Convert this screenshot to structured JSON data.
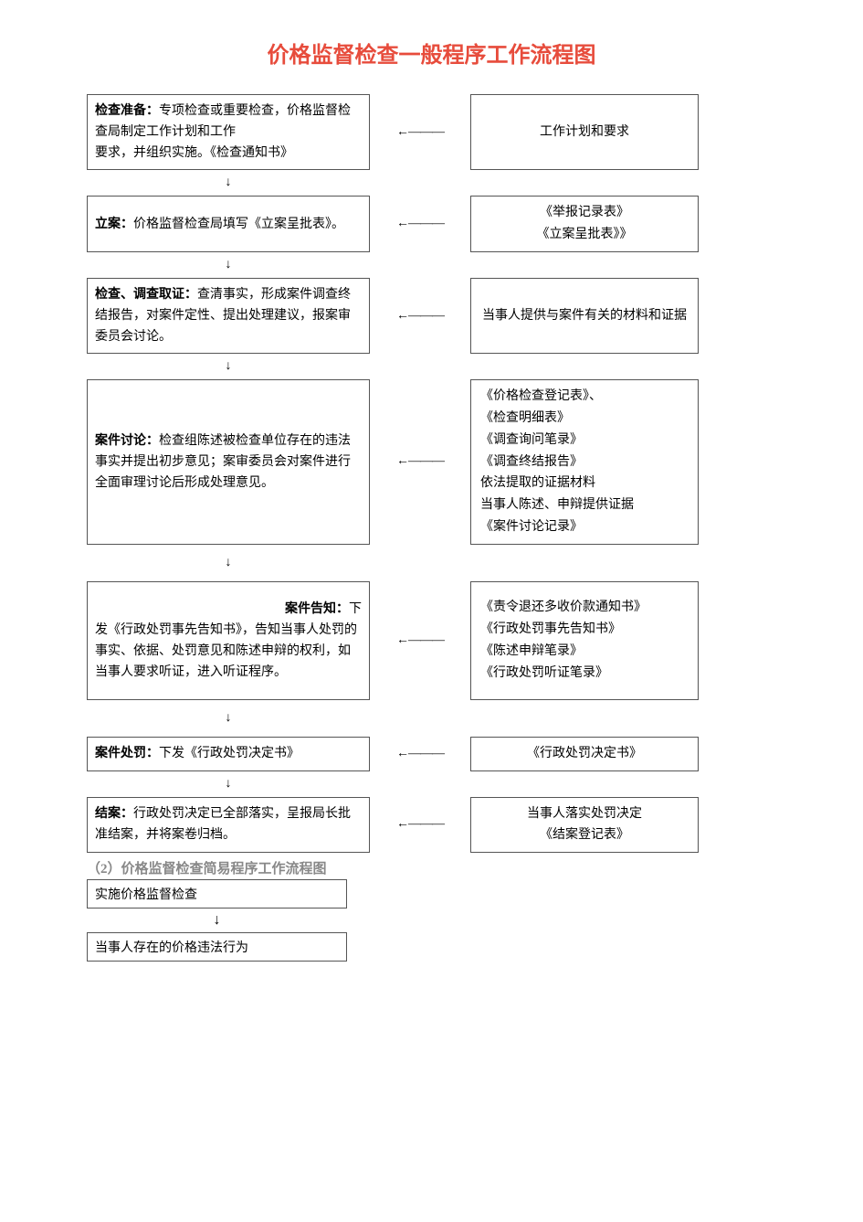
{
  "title": "价格监督检查一般程序工作流程图",
  "arrow_left_glyph": "←———",
  "arrow_down_glyph": "↓",
  "steps": [
    {
      "label": "检查准备：",
      "body": "专项检查或重要检查，价格监督检查局制定工作计划和工作",
      "body2": "要求，并组织实施。《检查通知书》",
      "right_lines": [
        "工作计划和要求"
      ],
      "right_centered": true
    },
    {
      "label": "立案：",
      "body": "价格监督检查局填写《立案呈批表》。",
      "right_lines": [
        "《举报记录表》",
        "《立案呈批表》》"
      ],
      "right_centered": true
    },
    {
      "label": "检查、调查取证：",
      "body": "查清事实，形成案件调查终结报告，对案件定性、提出处理建议，报案审委员会讨论。",
      "right_lines": [
        "当事人提供与案件有关的材料和证据"
      ],
      "right_centered": true
    },
    {
      "label": "案件讨论：",
      "body": "检查组陈述被检查单位存在的违法事实并提出初步意见；案审委员会对案件进行全面审理讨论后形成处理意见。",
      "right_lines": [
        "《价格检查登记表》、",
        "《检查明细表》",
        "《调查询问笔录》",
        "《调查终结报告》",
        "依法提取的证据材料",
        "当事人陈述、申辩提供证据",
        "《案件讨论记录》"
      ],
      "right_centered": false,
      "tall": true
    },
    {
      "label_right": true,
      "label": "案件告知：",
      "body": "下发《行政处罚事先告知书》，告知当事人处罚的事实、依据、处罚意见和陈述申辩的权利，如当事人要求听证，进入听证程序。",
      "right_lines": [
        "《责令退还多收价款通知书》",
        "《行政处罚事先告知书》",
        "《陈述申辩笔录》",
        "《行政处罚听证笔录》"
      ],
      "right_centered": false,
      "tall_mid": true
    },
    {
      "label": "案件处罚：",
      "body": "下发《行政处罚决定书》",
      "right_lines": [
        "《行政处罚决定书》"
      ],
      "right_centered": true
    },
    {
      "label": "结案：",
      "body": "行政处罚决定已全部落实，呈报局长批准结案，并将案卷归档。",
      "right_lines": [
        "当事人落实处罚决定",
        "《结案登记表》"
      ],
      "right_centered": true
    }
  ],
  "subtitle": "（2）价格监督检查简易程序工作流程图",
  "simple_steps": [
    "实施价格监督检查",
    "当事人存在的价格违法行为"
  ]
}
